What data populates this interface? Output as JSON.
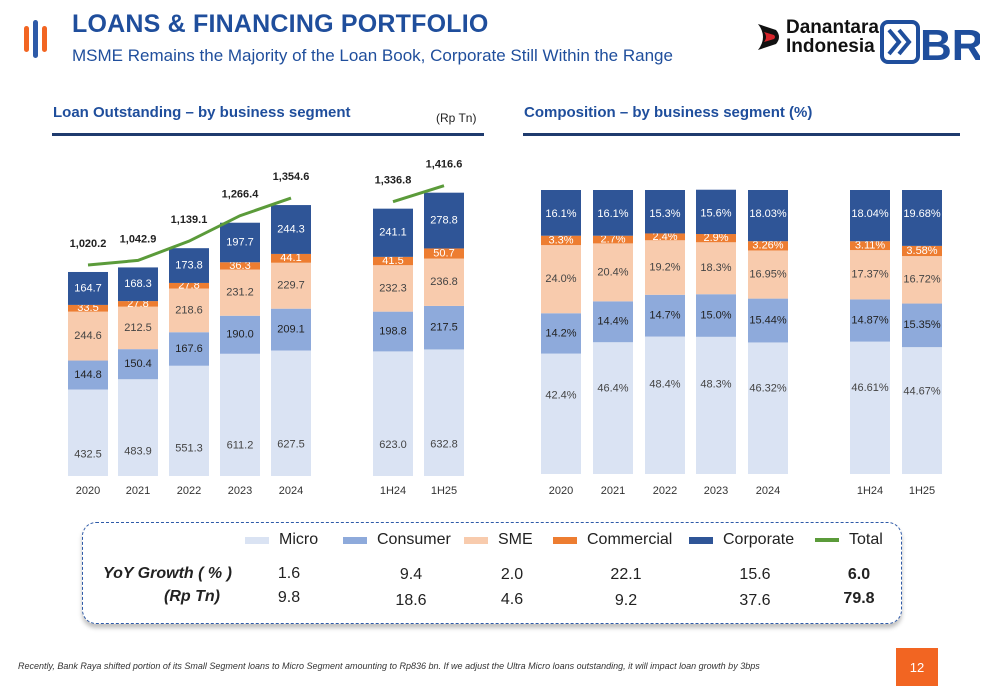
{
  "header": {
    "title": "LOANS & FINANCING PORTFOLIO",
    "subtitle": "MSME Remains the Majority of the Loan Book, Corporate Still Within the Range",
    "brand_line1": "Danantara",
    "brand_line2": "Indonesia",
    "bri_logo_text": "BRI"
  },
  "left_section": {
    "title": "Loan Outstanding – by business segment",
    "unit": "(Rp Tn)"
  },
  "right_section": {
    "title": "Composition – by business segment (%)"
  },
  "colors": {
    "micro": "#dae3f3",
    "consumer": "#8eaadb",
    "sme": "#f8cbad",
    "commercial": "#ed7d31",
    "corporate": "#2f5597",
    "total": "#5b9b3a",
    "accent": "#1f4e9c"
  },
  "chart_data": [
    {
      "type": "bar",
      "stacked": true,
      "title": "Loan Outstanding – by business segment",
      "unit": "(Rp Tn)",
      "categories": [
        "2020",
        "2021",
        "2022",
        "2023",
        "2024",
        "1H24",
        "1H25"
      ],
      "series": [
        {
          "name": "Micro",
          "values": [
            432.5,
            483.9,
            551.3,
            611.2,
            627.5,
            623.0,
            632.8
          ]
        },
        {
          "name": "Consumer",
          "values": [
            144.8,
            150.4,
            167.6,
            190.0,
            209.1,
            198.8,
            217.5
          ]
        },
        {
          "name": "SME",
          "values": [
            244.6,
            212.5,
            218.6,
            231.2,
            229.7,
            232.3,
            236.8
          ]
        },
        {
          "name": "Commercial",
          "values": [
            33.5,
            27.8,
            27.8,
            36.3,
            44.1,
            41.5,
            50.7
          ]
        },
        {
          "name": "Corporate",
          "values": [
            164.7,
            168.3,
            173.8,
            197.7,
            244.3,
            241.1,
            278.8
          ]
        }
      ],
      "totals": {
        "name": "Total",
        "type": "line",
        "values": [
          1020.2,
          1042.9,
          1139.1,
          1266.4,
          1354.6,
          1336.8,
          1416.6
        ]
      },
      "labels": {
        "values": [
          [
            "432.5",
            "483.9",
            "551.3",
            "611.2",
            "627.5",
            "623.0",
            "632.8"
          ],
          [
            "144.8",
            "150.4",
            "167.6",
            "190.0",
            "209.1",
            "198.8",
            "217.5"
          ],
          [
            "244.6",
            "212.5",
            "218.6",
            "231.2",
            "229.7",
            "232.3",
            "236.8"
          ],
          [
            "33.5",
            "27.8",
            "27.8",
            "36.3",
            "44.1",
            "41.5",
            "50.7"
          ],
          [
            "164.7",
            "168.3",
            "173.8",
            "197.7",
            "244.3",
            "241.1",
            "278.8"
          ]
        ],
        "totals": [
          "1,020.2",
          "1,042.9",
          "1,139.1",
          "1,266.4",
          "1,354.6",
          "1,336.8",
          "1,416.6"
        ]
      },
      "grid": false,
      "legend": "bottom"
    },
    {
      "type": "bar",
      "stacked": true,
      "percent": true,
      "title": "Composition – by business segment (%)",
      "categories": [
        "2020",
        "2021",
        "2022",
        "2023",
        "2024",
        "1H24",
        "1H25"
      ],
      "series": [
        {
          "name": "Micro",
          "values": [
            42.4,
            46.4,
            48.4,
            48.3,
            46.32,
            46.61,
            44.67
          ]
        },
        {
          "name": "Consumer",
          "values": [
            14.2,
            14.4,
            14.7,
            15.0,
            15.44,
            14.87,
            15.35
          ]
        },
        {
          "name": "SME",
          "values": [
            24.0,
            20.4,
            19.2,
            18.3,
            16.95,
            17.37,
            16.72
          ]
        },
        {
          "name": "Commercial",
          "values": [
            3.3,
            2.7,
            2.4,
            2.9,
            3.26,
            3.11,
            3.58
          ]
        },
        {
          "name": "Corporate",
          "values": [
            16.1,
            16.1,
            15.3,
            15.6,
            18.03,
            18.04,
            19.68
          ]
        }
      ],
      "labels": [
        [
          "42.4%",
          "46.4%",
          "48.4%",
          "48.3%",
          "46.32%",
          "46.61%",
          "44.67%"
        ],
        [
          "14.2%",
          "14.4%",
          "14.7%",
          "15.0%",
          "15.44%",
          "14.87%",
          "15.35%"
        ],
        [
          "24.0%",
          "20.4%",
          "19.2%",
          "18.3%",
          "16.95%",
          "17.37%",
          "16.72%"
        ],
        [
          "3.3%",
          "2.7%",
          "2.4%",
          "2.9%",
          "3.26%",
          "3.11%",
          "3.58%"
        ],
        [
          "16.1%",
          "16.1%",
          "15.3%",
          "15.6%",
          "18.03%",
          "18.04%",
          "19.68%"
        ]
      ],
      "grid": false,
      "legend": "bottom"
    }
  ],
  "legend": {
    "items": [
      {
        "name": "Micro"
      },
      {
        "name": "Consumer"
      },
      {
        "name": "SME"
      },
      {
        "name": "Commercial"
      },
      {
        "name": "Corporate"
      },
      {
        "name": "Total"
      }
    ]
  },
  "growth_table": {
    "row1_label": "YoY Growth  ( % )",
    "row2_label": "(Rp Tn)",
    "pct": [
      "1.6",
      "9.4",
      "2.0",
      "22.1",
      "15.6",
      "6.0"
    ],
    "rp": [
      "9.8",
      "18.6",
      "4.6",
      "9.2",
      "37.6",
      "79.8"
    ]
  },
  "footnote": "Recently, Bank Raya shifted portion of its Small Segment loans to Micro Segment amounting to Rp836 bn. If we adjust the Ultra Micro loans outstanding, it will impact loan growth by 3bps",
  "page_number": "12"
}
